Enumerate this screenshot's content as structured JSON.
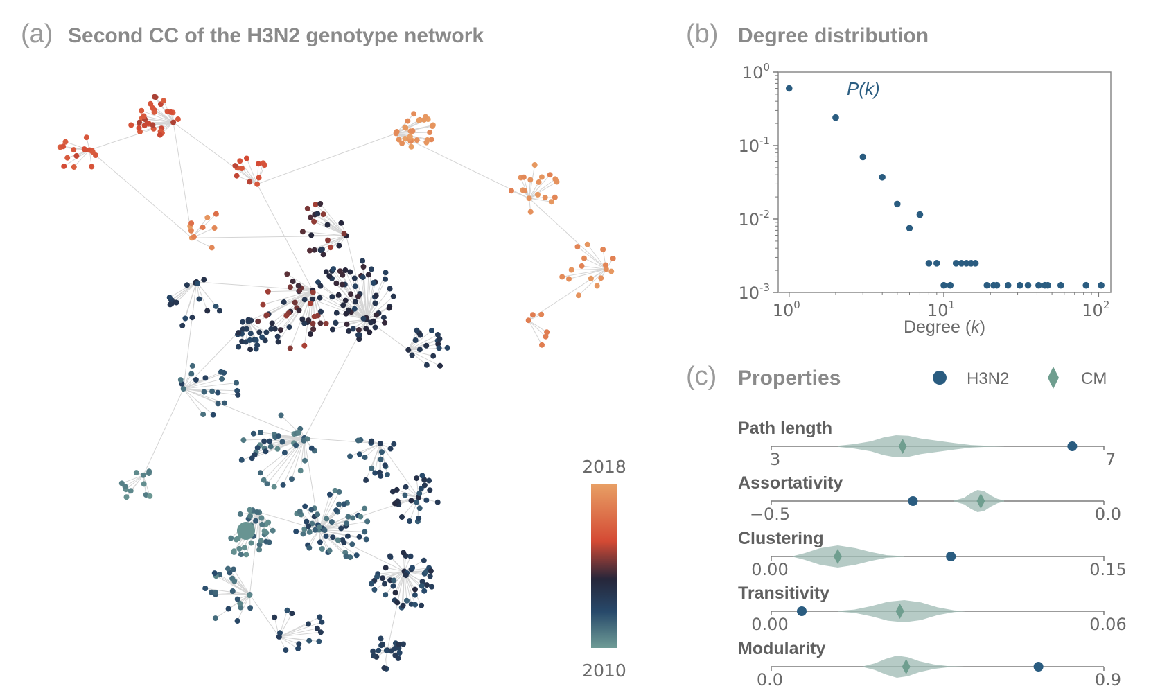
{
  "panels": {
    "a": {
      "label": "(a)",
      "title": "Second CC of the H3N2 genotype network"
    },
    "b": {
      "label": "(b)",
      "title": "Degree distribution"
    },
    "c": {
      "label": "(c)",
      "title": "Properties"
    }
  },
  "colorbar": {
    "top_label": "2018",
    "bottom_label": "2010",
    "stops": [
      "#e8a065",
      "#d44a34",
      "#26263a",
      "#27496a",
      "#6f9c96"
    ]
  },
  "colors": {
    "h3n2": "#2a5c80",
    "cm": "#6f9e8f",
    "violin": "#9dbab3",
    "edge": "#d4d4d4"
  },
  "chart_data": [
    {
      "type": "scatter",
      "panel": "b",
      "title": "Degree distribution",
      "xlabel": "Degree (k)",
      "xlabel_main": "Degree (",
      "xlabel_var": "k",
      "xlabel_close": ")",
      "ylabel": "",
      "xscale": "log",
      "yscale": "log",
      "xlim": [
        0.85,
        120
      ],
      "ylim": [
        0.001,
        1
      ],
      "xticks": [
        {
          "base": "10",
          "exp": "0",
          "value": 1
        },
        {
          "base": "10",
          "exp": "1",
          "value": 10
        },
        {
          "base": "10",
          "exp": "2",
          "value": 100
        }
      ],
      "yticks": [
        {
          "base": "10",
          "exp": "0",
          "value": 1
        },
        {
          "base": "10",
          "exp": "-1",
          "value": 0.1
        },
        {
          "base": "10",
          "exp": "-2",
          "value": 0.01
        },
        {
          "base": "10",
          "exp": "-3",
          "value": 0.001
        }
      ],
      "series": [
        {
          "name": "P(k)",
          "name_main": "P(",
          "name_var": "k",
          "name_close": ")",
          "points": [
            [
              1,
              0.6
            ],
            [
              2,
              0.24
            ],
            [
              3,
              0.07
            ],
            [
              4,
              0.037
            ],
            [
              5,
              0.016
            ],
            [
              6,
              0.0075
            ],
            [
              7,
              0.0115
            ],
            [
              8,
              0.0025
            ],
            [
              9,
              0.0025
            ],
            [
              10,
              0.00125
            ],
            [
              11,
              0.00125
            ],
            [
              12,
              0.0025
            ],
            [
              13,
              0.0025
            ],
            [
              14,
              0.0025
            ],
            [
              15,
              0.0025
            ],
            [
              16,
              0.0025
            ],
            [
              19,
              0.00125
            ],
            [
              21,
              0.00125
            ],
            [
              22,
              0.00125
            ],
            [
              26,
              0.00125
            ],
            [
              31,
              0.00125
            ],
            [
              35,
              0.00125
            ],
            [
              41,
              0.00125
            ],
            [
              45,
              0.00125
            ],
            [
              47,
              0.00125
            ],
            [
              57,
              0.00125
            ],
            [
              83,
              0.00125
            ],
            [
              104,
              0.00125
            ]
          ]
        }
      ]
    },
    {
      "type": "violin",
      "panel": "c",
      "title": "Properties",
      "legend": [
        {
          "name": "H3N2",
          "marker": "circle"
        },
        {
          "name": "CM",
          "marker": "diamond"
        }
      ],
      "legend_position": "top-right",
      "rows": [
        {
          "name": "Path length",
          "xmin": 3,
          "xmax": 7,
          "min_label": "3",
          "max_label": "7",
          "h3n2": 6.62,
          "cm_mean": 4.58,
          "density": [
            [
              3.8,
              0.05
            ],
            [
              4.0,
              0.2
            ],
            [
              4.2,
              0.45
            ],
            [
              4.35,
              0.8
            ],
            [
              4.5,
              1.0
            ],
            [
              4.65,
              0.95
            ],
            [
              4.8,
              0.7
            ],
            [
              5.0,
              0.5
            ],
            [
              5.2,
              0.3
            ],
            [
              5.4,
              0.12
            ],
            [
              5.6,
              0.05
            ],
            [
              5.8,
              0.01
            ]
          ]
        },
        {
          "name": "Assortativity",
          "xmin": -0.5,
          "xmax": 0.0,
          "min_label": "−0.5",
          "max_label": "0.0",
          "h3n2": -0.287,
          "cm_mean": -0.185,
          "density": [
            [
              -0.225,
              0.05
            ],
            [
              -0.21,
              0.3
            ],
            [
              -0.2,
              0.7
            ],
            [
              -0.19,
              1.0
            ],
            [
              -0.18,
              0.9
            ],
            [
              -0.17,
              0.5
            ],
            [
              -0.16,
              0.2
            ],
            [
              -0.15,
              0.05
            ]
          ]
        },
        {
          "name": "Clustering",
          "xmin": 0.0,
          "xmax": 0.15,
          "min_label": "0.00",
          "max_label": "0.15",
          "h3n2": 0.081,
          "cm_mean": 0.03,
          "density": [
            [
              0.01,
              0.05
            ],
            [
              0.015,
              0.3
            ],
            [
              0.022,
              0.75
            ],
            [
              0.03,
              1.0
            ],
            [
              0.038,
              0.75
            ],
            [
              0.045,
              0.4
            ],
            [
              0.052,
              0.12
            ],
            [
              0.06,
              0.02
            ]
          ]
        },
        {
          "name": "Transitivity",
          "xmin": 0.0,
          "xmax": 0.06,
          "min_label": "0.00",
          "max_label": "0.06",
          "h3n2": 0.0055,
          "cm_mean": 0.0232,
          "density": [
            [
              0.012,
              0.03
            ],
            [
              0.015,
              0.15
            ],
            [
              0.018,
              0.45
            ],
            [
              0.021,
              0.85
            ],
            [
              0.024,
              1.0
            ],
            [
              0.027,
              0.8
            ],
            [
              0.03,
              0.35
            ],
            [
              0.033,
              0.08
            ],
            [
              0.035,
              0.01
            ]
          ]
        },
        {
          "name": "Modularity",
          "xmin": 0.0,
          "xmax": 0.9,
          "min_label": "0.0",
          "max_label": "0.9",
          "h3n2": 0.723,
          "cm_mean": 0.365,
          "density": [
            [
              0.25,
              0.05
            ],
            [
              0.28,
              0.3
            ],
            [
              0.31,
              0.7
            ],
            [
              0.34,
              1.0
            ],
            [
              0.37,
              0.85
            ],
            [
              0.4,
              0.5
            ],
            [
              0.44,
              0.2
            ],
            [
              0.48,
              0.05
            ],
            [
              0.52,
              0.01
            ]
          ]
        }
      ]
    }
  ]
}
